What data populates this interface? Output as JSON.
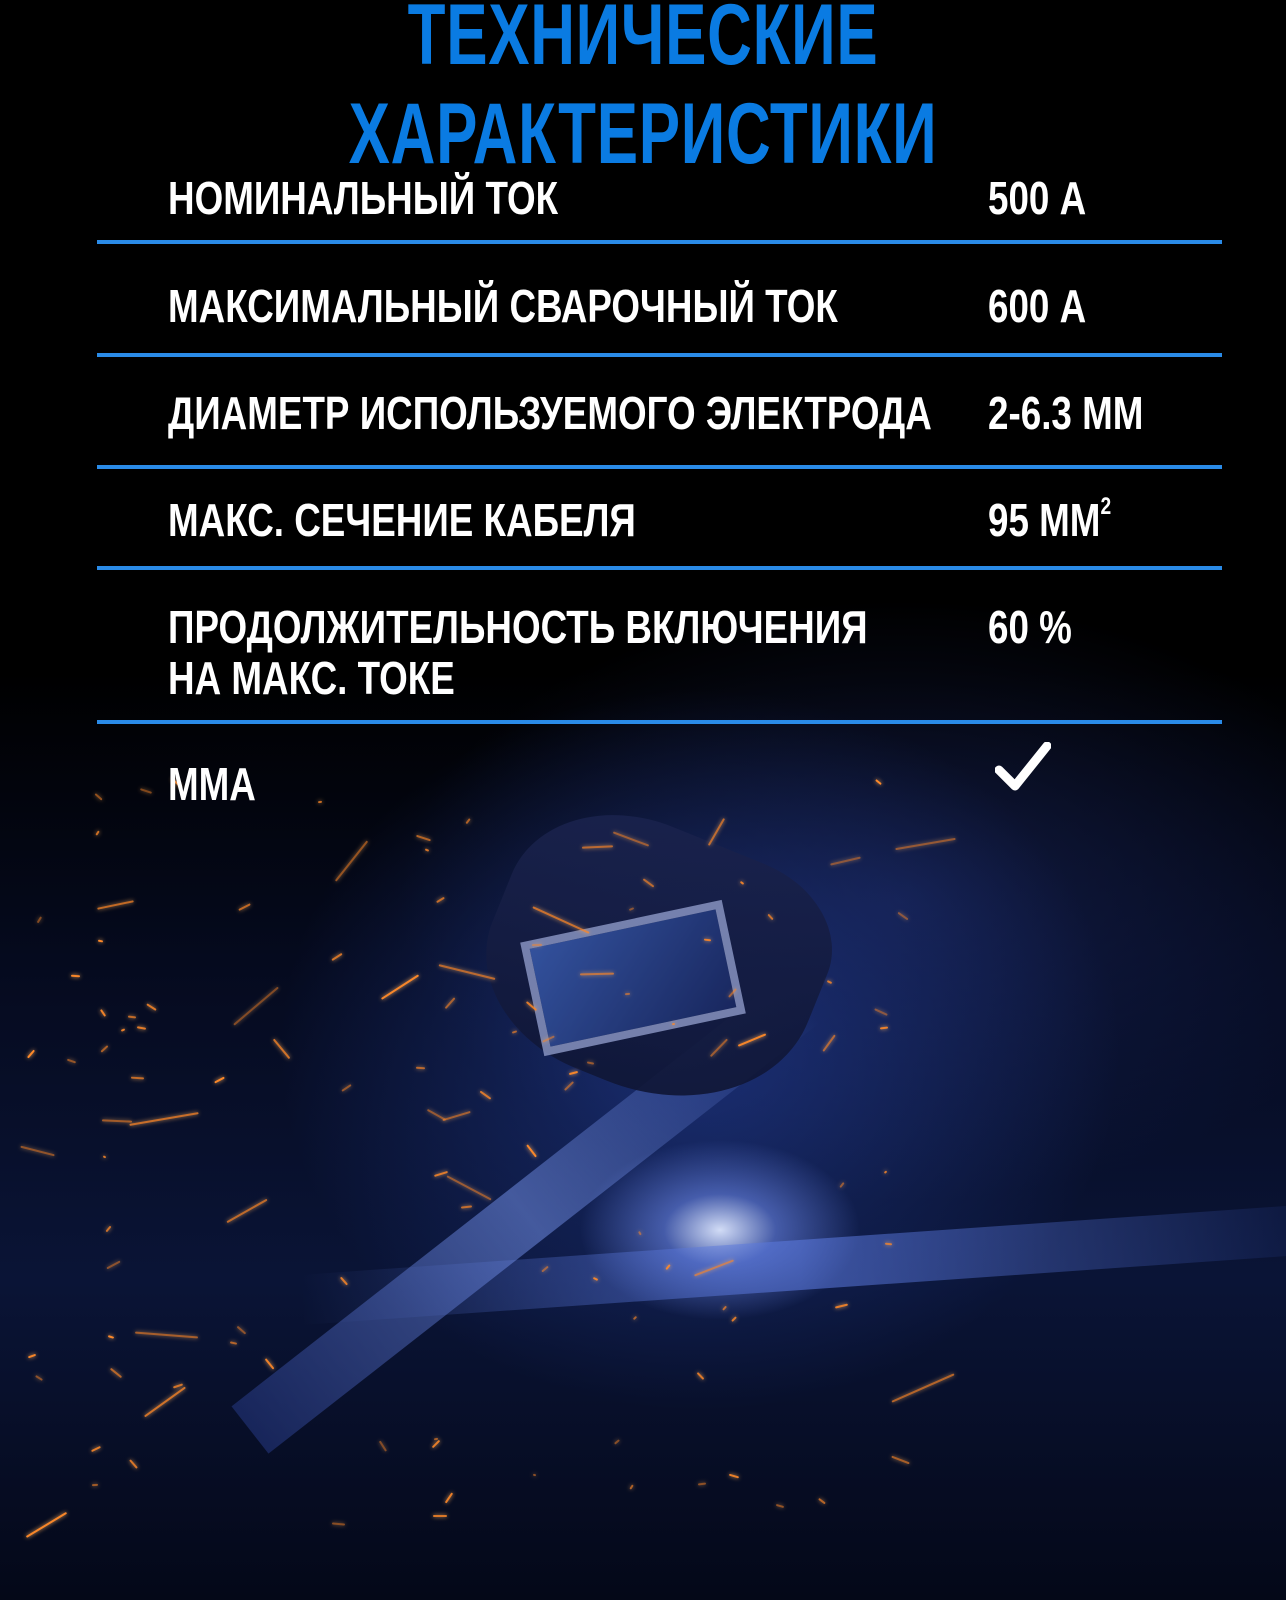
{
  "title": "ТЕХНИЧЕСКИЕ ХАРАКТЕРИСТИКИ",
  "specs": [
    {
      "label": "НОМИНАЛЬНЫЙ ТОК",
      "value": "500 А"
    },
    {
      "label": "МАКСИМАЛЬНЫЙ СВАРОЧНЫЙ ТОК",
      "value": "600 А"
    },
    {
      "label": "ДИАМЕТР ИСПОЛЬЗУЕМОГО ЭЛЕКТРОДА",
      "value": "2-6.3 ММ"
    },
    {
      "label": "МАКС. СЕЧЕНИЕ КАБЕЛЯ",
      "value": "95 ММ",
      "value_sup": "2"
    },
    {
      "label": "ПРОДОЛЖИТЕЛЬНОСТЬ ВКЛЮЧЕНИЯ",
      "label_line2": "НА МАКС. ТОКЕ",
      "value": "60 %"
    },
    {
      "label": "ММА",
      "value_icon": "checkmark-icon"
    }
  ],
  "colors": {
    "accent": "#0a7be2",
    "divider": "#2a8be8",
    "text": "#ffffff",
    "background": "#000000"
  }
}
